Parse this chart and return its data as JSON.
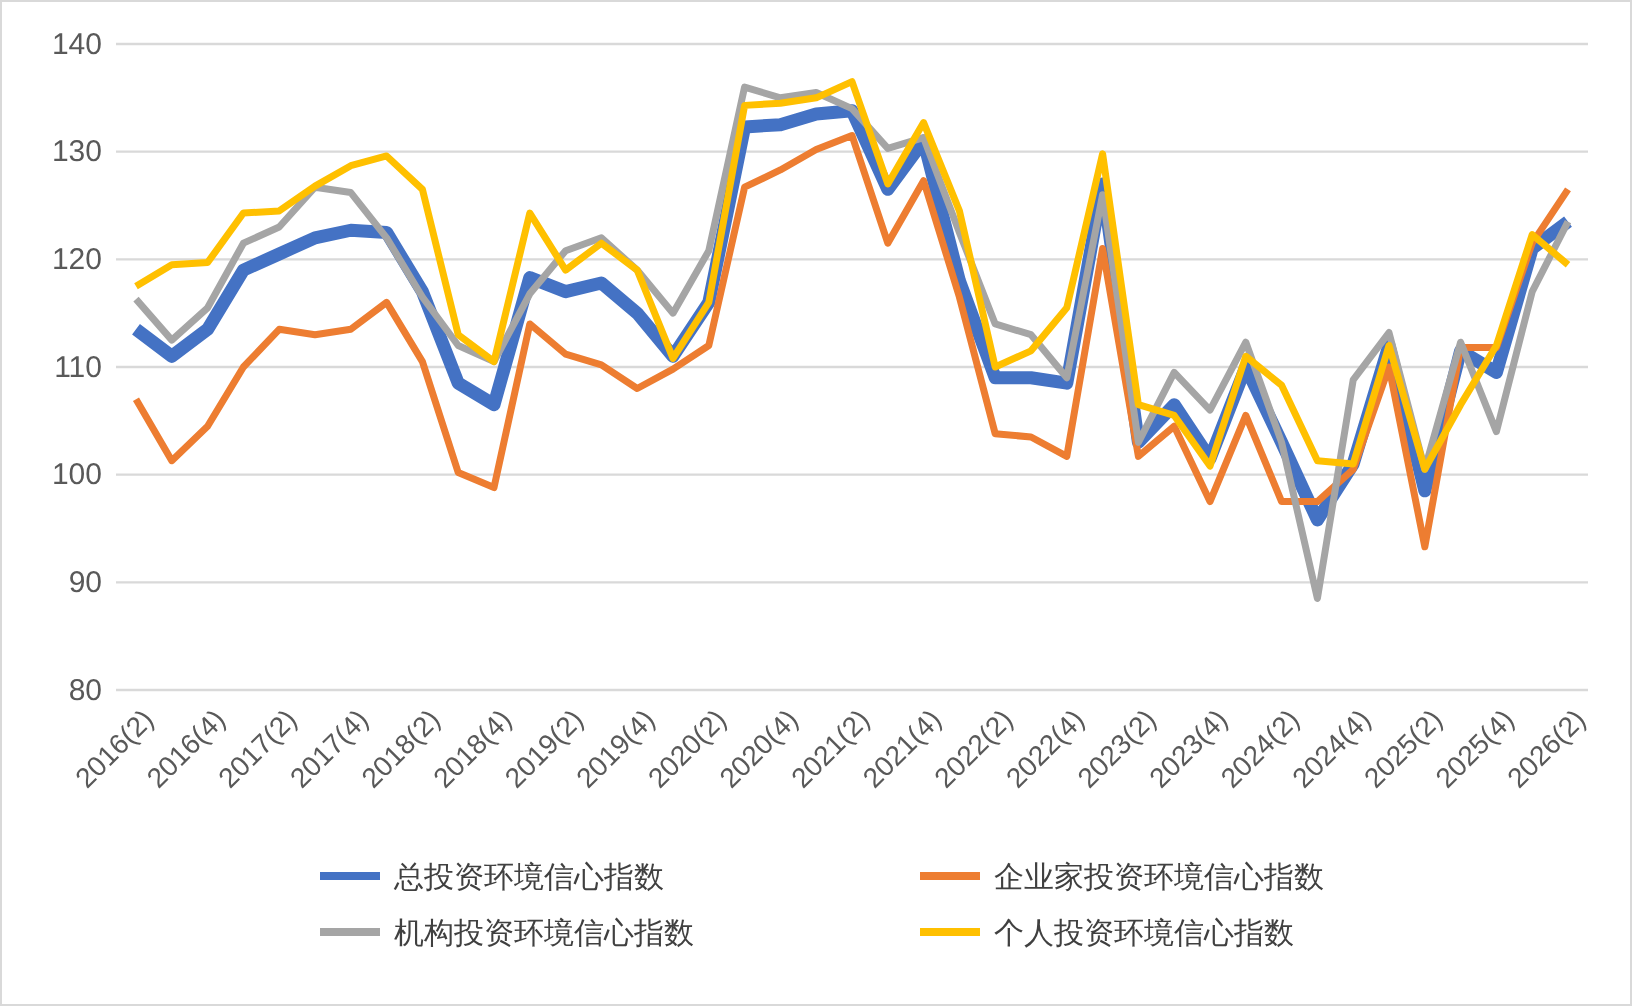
{
  "chart_data": {
    "type": "line",
    "categories": [
      "2016(2)",
      null,
      "2016(4)",
      null,
      "2017(2)",
      null,
      "2017(4)",
      null,
      "2018(2)",
      null,
      "2018(4)",
      null,
      "2019(2)",
      null,
      "2019(4)",
      null,
      "2020(2)",
      null,
      "2020(4)",
      null,
      "2021(2)",
      null,
      "2021(4)",
      null,
      "2022(2)",
      null,
      "2022(4)",
      null,
      "2023(2)",
      null,
      "2023(4)",
      null,
      "2024(2)",
      null,
      "2024(4)",
      null,
      "2025(2)",
      null,
      "2025(4)",
      null,
      "2026(2)"
    ],
    "series": [
      {
        "name": "总投资环境信心指数",
        "color": "#4472c4",
        "values": [
          113.5,
          111,
          113.5,
          119,
          120.5,
          122,
          122.7,
          122.5,
          117,
          108.5,
          106.5,
          118.3,
          117,
          117.8,
          115,
          111,
          116,
          132.3,
          132.5,
          133.5,
          133.8,
          126.5,
          131,
          118,
          109,
          109,
          108.5,
          127,
          103,
          106.5,
          101.5,
          110,
          103,
          95.8,
          101,
          112,
          98.5,
          111.5,
          109.5,
          121,
          123.5
        ]
      },
      {
        "name": "企业家投资环境信心指数",
        "color": "#ed7d31",
        "values": [
          107,
          101.3,
          104.5,
          110,
          113.5,
          113,
          113.5,
          116,
          110.5,
          100.2,
          98.8,
          114,
          111.2,
          110.2,
          108,
          109.8,
          112,
          126.7,
          128.3,
          130.2,
          131.5,
          121.5,
          127.3,
          116.5,
          103.8,
          103.5,
          101.7,
          121,
          101.7,
          104.5,
          97.5,
          105.5,
          97.5,
          97.5,
          100.5,
          110,
          93.3,
          111.8,
          111.8,
          121.5,
          126.5
        ]
      },
      {
        "name": "机构投资环境信心指数",
        "color": "#a5a5a5",
        "values": [
          116.3,
          112.5,
          115.5,
          121.5,
          123,
          126.7,
          126.2,
          122,
          116.5,
          112,
          110.5,
          116.8,
          120.8,
          122,
          119,
          115,
          120.8,
          136,
          135,
          135.5,
          134,
          130.3,
          131.3,
          122.5,
          114,
          113,
          109,
          126,
          103,
          109.5,
          106,
          112.3,
          103,
          88.5,
          108.8,
          113.2,
          100.5,
          112.3,
          104,
          117,
          123.5
        ]
      },
      {
        "name": "个人投资环境信心指数",
        "color": "#ffc000",
        "values": [
          117.5,
          119.5,
          119.7,
          124.3,
          124.5,
          126.8,
          128.7,
          129.6,
          126.5,
          113,
          110.5,
          124.3,
          119,
          121.5,
          119,
          110.8,
          116,
          134.3,
          134.5,
          135,
          136.5,
          127,
          132.7,
          124.5,
          110,
          111.5,
          115.5,
          129.8,
          106.5,
          105.5,
          100.8,
          111,
          108.3,
          101.3,
          101,
          112,
          100.5,
          106.5,
          112,
          122.3,
          119.5
        ]
      }
    ],
    "ylim": [
      80,
      140
    ],
    "yticks": [
      80,
      90,
      100,
      110,
      120,
      130,
      140
    ],
    "grid": "y",
    "legend": "bottom",
    "marker": "none",
    "line_style": "solid"
  }
}
